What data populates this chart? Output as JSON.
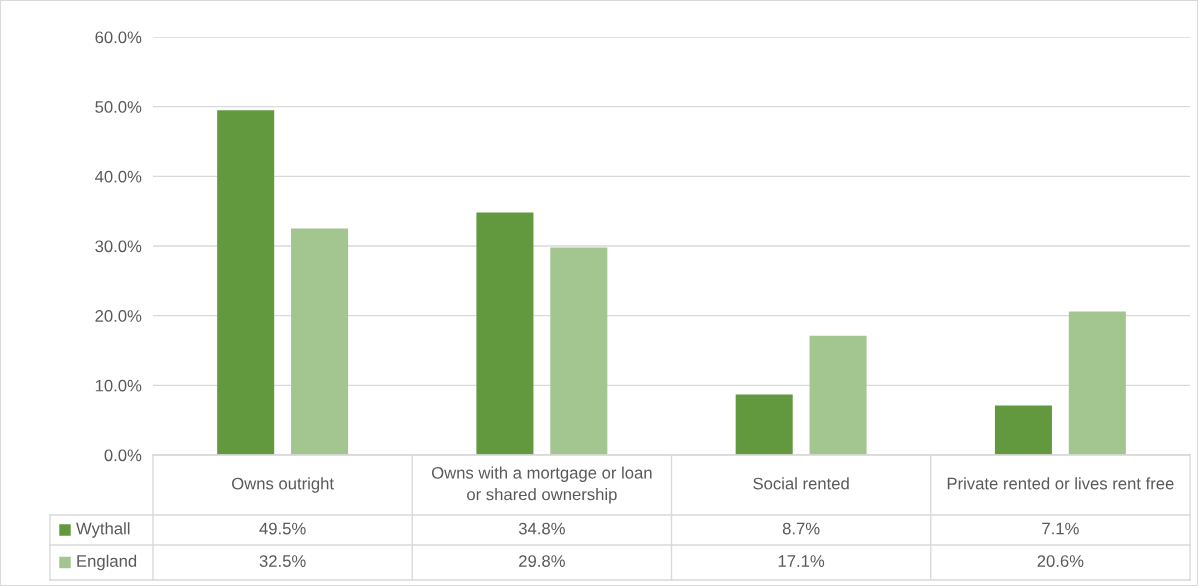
{
  "chart_data": {
    "type": "bar",
    "categories": [
      "Owns outright",
      "Owns with a mortgage or loan or shared ownership",
      "Social rented",
      "Private rented or lives rent free"
    ],
    "series": [
      {
        "name": "Wythall",
        "color": "#62993e",
        "values": [
          49.5,
          34.8,
          8.7,
          7.1
        ],
        "value_labels": [
          "49.5%",
          "34.8%",
          "8.7%",
          "7.1%"
        ]
      },
      {
        "name": "England",
        "color": "#a3c58f",
        "values": [
          32.5,
          29.8,
          17.1,
          20.6
        ],
        "value_labels": [
          "32.5%",
          "29.8%",
          "17.1%",
          "20.6%"
        ]
      }
    ],
    "ylim": [
      0,
      60
    ],
    "yticks": [
      {
        "value": 0,
        "label": "0.0%"
      },
      {
        "value": 10,
        "label": "10.0%"
      },
      {
        "value": 20,
        "label": "20.0%"
      },
      {
        "value": 30,
        "label": "30.0%"
      },
      {
        "value": 40,
        "label": "40.0%"
      },
      {
        "value": 50,
        "label": "50.0%"
      },
      {
        "value": 60,
        "label": "60.0%"
      }
    ],
    "grid": "y",
    "legend": "bottom left"
  }
}
